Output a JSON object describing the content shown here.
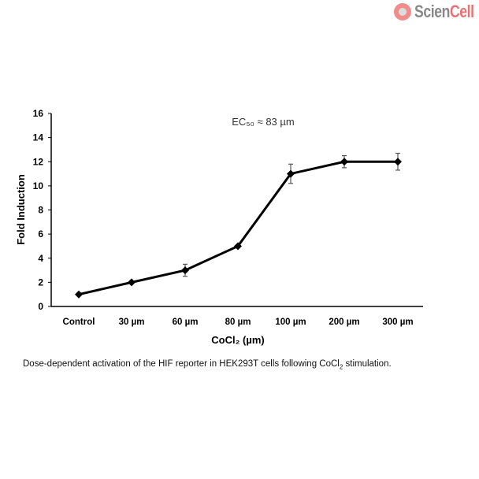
{
  "logo": {
    "text_a": "Scien",
    "text_b": "Cell"
  },
  "caption": {
    "before": "Dose-dependent activation of the HIF reporter in HEK293T cells following CoCl",
    "sub": "2",
    "after": " stimulation."
  },
  "chart_data": {
    "type": "line",
    "categories": [
      "Control",
      "30 µm",
      "60 µm",
      "80 µm",
      "100 µm",
      "200 µm",
      "300 µm"
    ],
    "values": [
      1,
      2,
      3,
      5,
      11,
      12,
      12
    ],
    "errors": [
      0.1,
      0.1,
      0.5,
      0.1,
      0.8,
      0.5,
      0.7
    ],
    "ylabel": "Fold  Induction",
    "xlabel": "CoCl₂ (µm)",
    "annotation": "EC₅₀ ≈ 83 µm",
    "ylim": [
      0,
      16
    ],
    "yticks": [
      0,
      2,
      4,
      6,
      8,
      10,
      12,
      14,
      16
    ],
    "grid": false,
    "color": "#000000"
  }
}
